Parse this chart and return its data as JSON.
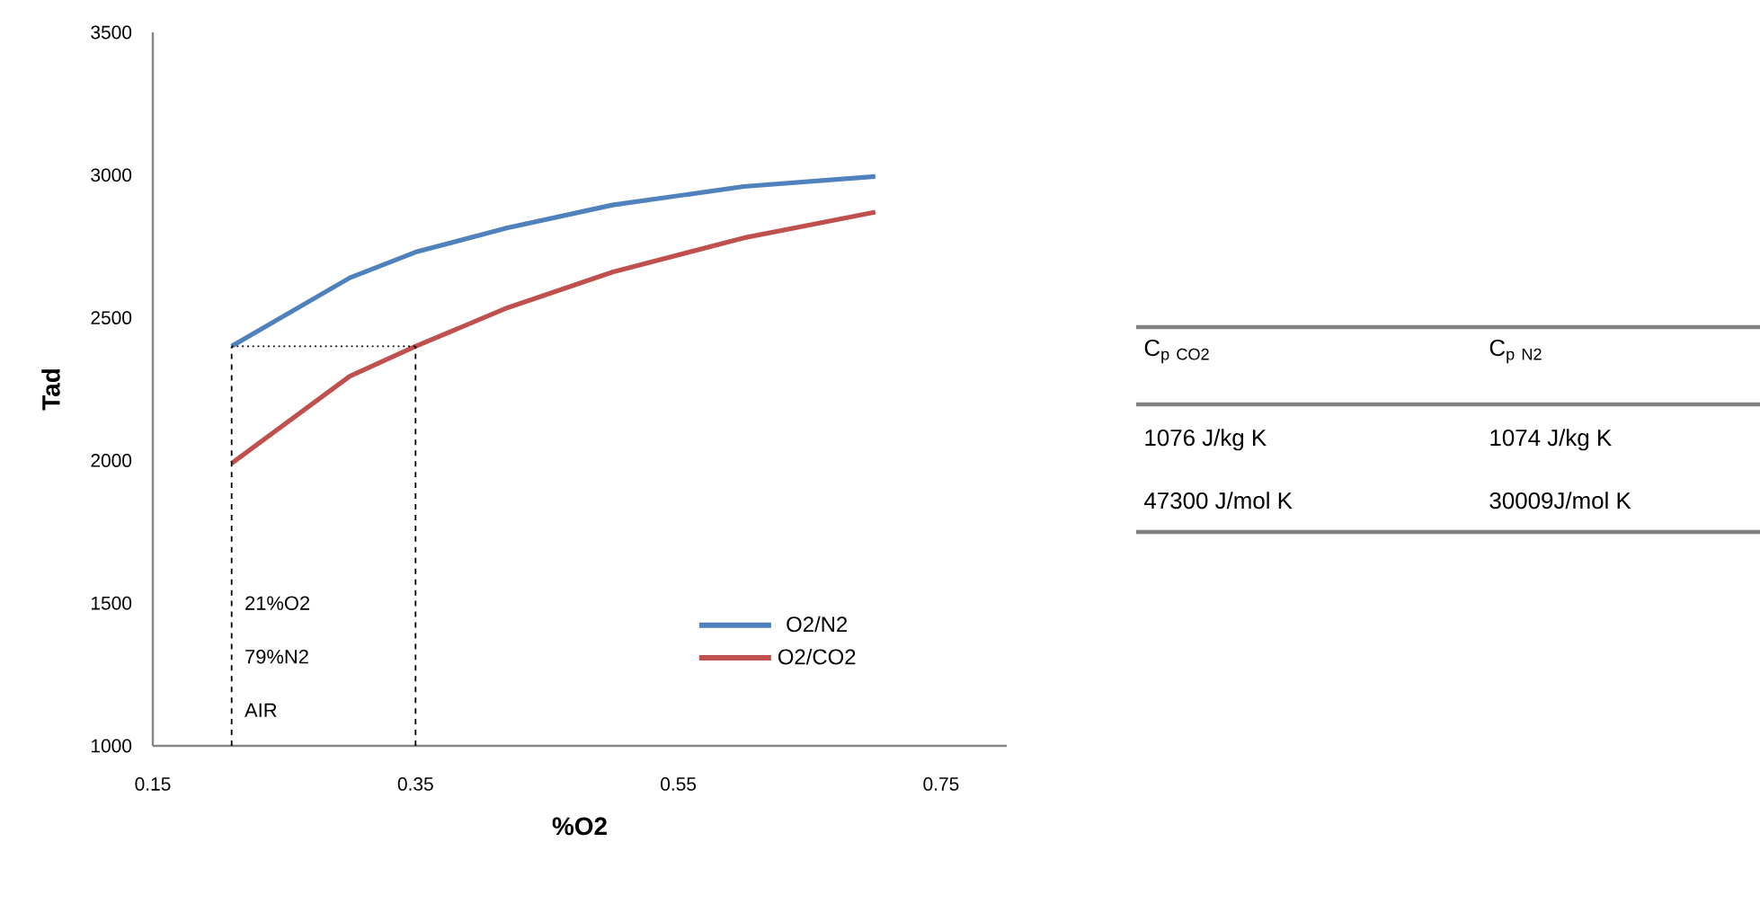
{
  "chart_data": [
    {
      "type": "line",
      "xlabel": "%O2",
      "ylabel": "Tad",
      "xlim": [
        0.15,
        0.8
      ],
      "xticks": [
        0.15,
        0.35,
        0.55,
        0.75
      ],
      "ylim": [
        1000,
        3500
      ],
      "yticks": [
        1000,
        1500,
        2000,
        2500,
        3000,
        3500
      ],
      "grid": false,
      "legend": "bottom right",
      "marker": "none",
      "series": [
        {
          "name": "O2/N2",
          "color": "#4f81bd",
          "line_style": "solid",
          "x": [
            0.21,
            0.3,
            0.35,
            0.42,
            0.5,
            0.6,
            0.7
          ],
          "values": [
            2400,
            2640,
            2730,
            2815,
            2895,
            2960,
            2995
          ]
        },
        {
          "name": "O2/CO2",
          "color": "#c0504d",
          "line_style": "solid",
          "x": [
            0.21,
            0.3,
            0.35,
            0.42,
            0.5,
            0.6,
            0.7
          ],
          "values": [
            1990,
            2295,
            2400,
            2535,
            2660,
            2780,
            2870
          ]
        },
        {
          "color": "#000000",
          "line_style": "dashed",
          "x": [
            0.21,
            0.21
          ],
          "values": [
            1000,
            2400
          ]
        },
        {
          "color": "#000000",
          "line_style": "dashed",
          "x": [
            0.35,
            0.35
          ],
          "values": [
            1000,
            2400
          ]
        },
        {
          "color": "#000000",
          "line_style": "dotted",
          "x": [
            0.21,
            0.35
          ],
          "values": [
            2400,
            2400
          ]
        }
      ],
      "annotations": [
        "21%O2",
        "79%N2",
        "AIR"
      ]
    },
    {
      "type": "other",
      "annotations": [
        "\\mathrm{C}_{\\mathrm{p\\ CO2}}",
        "\\mathrm{C}_{\\mathrm{p\\ N2}}",
        "1076 J/kg K",
        "1074 J/kg K",
        "47300 J/mol K",
        "30009J/mol K"
      ]
    }
  ]
}
